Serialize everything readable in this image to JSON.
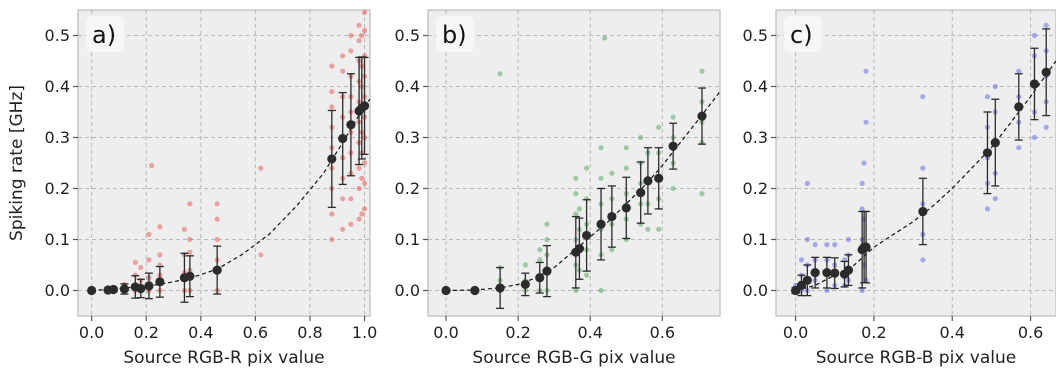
{
  "figure": {
    "ylabel": "Spiking rate [GHz]",
    "colors": {
      "background": "#ffffff",
      "plot_bg": "#eeeeee",
      "grid": "#b8b8b8",
      "spine": "#bbbbbb",
      "mean_marker": "#2b2b2b",
      "fit_line": "#111111",
      "letter_box": "#f7f7f7"
    }
  },
  "chart_data": [
    {
      "type": "scatter",
      "panel_label": "a)",
      "xlabel": "Source RGB-R pix value",
      "ylabel": "Spiking rate [GHz]",
      "xlim": [
        -0.05,
        1.02
      ],
      "ylim": [
        -0.05,
        0.55
      ],
      "xticks": [
        "0.0",
        "0.2",
        "0.4",
        "0.6",
        "0.8",
        "1.0"
      ],
      "xtick_values": [
        0.0,
        0.2,
        0.4,
        0.6,
        0.8,
        1.0
      ],
      "yticks": [
        "0.0",
        "0.1",
        "0.2",
        "0.3",
        "0.4",
        "0.5"
      ],
      "ytick_values": [
        0.0,
        0.1,
        0.2,
        0.3,
        0.4,
        0.5
      ],
      "grid": true,
      "scatter_color": "#e8413c",
      "fit_curve": {
        "x": [
          0.0,
          0.05,
          0.1,
          0.15,
          0.2,
          0.25,
          0.3,
          0.35,
          0.4,
          0.46,
          0.55,
          0.65,
          0.75,
          0.85,
          0.92,
          0.97,
          1.0,
          1.02
        ],
        "y": [
          0.0,
          0.002,
          0.004,
          0.006,
          0.009,
          0.012,
          0.017,
          0.023,
          0.031,
          0.042,
          0.07,
          0.11,
          0.165,
          0.23,
          0.29,
          0.335,
          0.362,
          0.375
        ]
      },
      "means": [
        {
          "x": 0.0,
          "y": 0.0,
          "sd": 0.0
        },
        {
          "x": 0.06,
          "y": 0.001,
          "sd": 0.003
        },
        {
          "x": 0.08,
          "y": 0.002,
          "sd": 0.004
        },
        {
          "x": 0.12,
          "y": 0.003,
          "sd": 0.01
        },
        {
          "x": 0.16,
          "y": 0.007,
          "sd": 0.022
        },
        {
          "x": 0.18,
          "y": 0.004,
          "sd": 0.018
        },
        {
          "x": 0.21,
          "y": 0.009,
          "sd": 0.025
        },
        {
          "x": 0.25,
          "y": 0.017,
          "sd": 0.03
        },
        {
          "x": 0.34,
          "y": 0.025,
          "sd": 0.048
        },
        {
          "x": 0.36,
          "y": 0.028,
          "sd": 0.04
        },
        {
          "x": 0.46,
          "y": 0.04,
          "sd": 0.047
        },
        {
          "x": 0.88,
          "y": 0.258,
          "sd": 0.095
        },
        {
          "x": 0.92,
          "y": 0.298,
          "sd": 0.09
        },
        {
          "x": 0.95,
          "y": 0.325,
          "sd": 0.1
        },
        {
          "x": 0.98,
          "y": 0.352,
          "sd": 0.105
        },
        {
          "x": 0.99,
          "y": 0.358,
          "sd": 0.1
        },
        {
          "x": 1.0,
          "y": 0.362,
          "sd": 0.095
        }
      ],
      "scatter_points": {
        "x": [
          0.0,
          0.0,
          0.06,
          0.06,
          0.08,
          0.08,
          0.12,
          0.12,
          0.12,
          0.16,
          0.16,
          0.16,
          0.16,
          0.18,
          0.18,
          0.18,
          0.21,
          0.21,
          0.21,
          0.21,
          0.22,
          0.25,
          0.25,
          0.25,
          0.25,
          0.25,
          0.34,
          0.34,
          0.34,
          0.34,
          0.36,
          0.36,
          0.36,
          0.36,
          0.36,
          0.46,
          0.46,
          0.46,
          0.46,
          0.46,
          0.62,
          0.62,
          0.88,
          0.88,
          0.88,
          0.88,
          0.88,
          0.88,
          0.88,
          0.88,
          0.88,
          0.92,
          0.92,
          0.92,
          0.92,
          0.92,
          0.92,
          0.92,
          0.92,
          0.92,
          0.95,
          0.95,
          0.95,
          0.95,
          0.95,
          0.95,
          0.95,
          0.95,
          0.95,
          0.95,
          0.98,
          0.98,
          0.98,
          0.98,
          0.98,
          0.98,
          0.98,
          0.98,
          0.98,
          0.98,
          0.99,
          0.99,
          0.99,
          0.99,
          0.99,
          0.99,
          0.99,
          0.99,
          1.0,
          1.0,
          1.0,
          1.0,
          1.0,
          1.0,
          1.0,
          1.0,
          1.0,
          1.0
        ],
        "y": [
          0.0,
          0.002,
          0.0,
          0.004,
          0.002,
          0.006,
          0.0,
          0.012,
          0.004,
          0.0,
          0.03,
          0.055,
          0.01,
          0.0,
          0.045,
          0.02,
          0.0,
          0.06,
          0.025,
          0.11,
          0.245,
          0.0,
          0.07,
          0.03,
          0.125,
          0.05,
          0.0,
          0.07,
          0.035,
          0.12,
          0.0,
          0.075,
          0.1,
          0.17,
          0.04,
          0.0,
          0.06,
          0.1,
          0.14,
          0.17,
          0.24,
          0.07,
          0.1,
          0.15,
          0.2,
          0.24,
          0.28,
          0.32,
          0.36,
          0.39,
          0.44,
          0.12,
          0.18,
          0.22,
          0.26,
          0.3,
          0.34,
          0.38,
          0.43,
          0.46,
          0.13,
          0.18,
          0.23,
          0.27,
          0.31,
          0.35,
          0.38,
          0.42,
          0.47,
          0.5,
          0.14,
          0.2,
          0.24,
          0.29,
          0.33,
          0.37,
          0.41,
          0.45,
          0.49,
          0.52,
          0.15,
          0.22,
          0.27,
          0.31,
          0.36,
          0.4,
          0.44,
          0.5,
          0.16,
          0.21,
          0.25,
          0.3,
          0.34,
          0.38,
          0.42,
          0.46,
          0.51,
          0.545
        ]
      }
    },
    {
      "type": "scatter",
      "panel_label": "b)",
      "xlabel": "Source RGB-G pix value",
      "ylabel": "",
      "xlim": [
        -0.05,
        0.76
      ],
      "ylim": [
        -0.05,
        0.55
      ],
      "xticks": [
        "0.0",
        "0.2",
        "0.4",
        "0.6"
      ],
      "xtick_values": [
        0.0,
        0.2,
        0.4,
        0.6
      ],
      "yticks": [
        "0.0",
        "0.1",
        "0.2",
        "0.3",
        "0.4",
        "0.5"
      ],
      "ytick_values": [
        0.0,
        0.1,
        0.2,
        0.3,
        0.4,
        0.5
      ],
      "grid": true,
      "scatter_color": "#3f9a44",
      "fit_curve": {
        "x": [
          0.0,
          0.08,
          0.15,
          0.2,
          0.25,
          0.3,
          0.35,
          0.4,
          0.45,
          0.5,
          0.55,
          0.6,
          0.65,
          0.7,
          0.76
        ],
        "y": [
          0.0,
          0.001,
          0.005,
          0.012,
          0.025,
          0.045,
          0.075,
          0.105,
          0.135,
          0.17,
          0.205,
          0.245,
          0.29,
          0.335,
          0.39
        ]
      },
      "means": [
        {
          "x": 0.0,
          "y": 0.0,
          "sd": 0.0
        },
        {
          "x": 0.08,
          "y": 0.0,
          "sd": 0.002
        },
        {
          "x": 0.15,
          "y": 0.005,
          "sd": 0.04
        },
        {
          "x": 0.22,
          "y": 0.012,
          "sd": 0.022
        },
        {
          "x": 0.26,
          "y": 0.025,
          "sd": 0.03
        },
        {
          "x": 0.28,
          "y": 0.038,
          "sd": 0.05
        },
        {
          "x": 0.36,
          "y": 0.075,
          "sd": 0.07
        },
        {
          "x": 0.37,
          "y": 0.082,
          "sd": 0.06
        },
        {
          "x": 0.39,
          "y": 0.108,
          "sd": 0.07
        },
        {
          "x": 0.43,
          "y": 0.13,
          "sd": 0.07
        },
        {
          "x": 0.46,
          "y": 0.145,
          "sd": 0.06
        },
        {
          "x": 0.5,
          "y": 0.162,
          "sd": 0.06
        },
        {
          "x": 0.54,
          "y": 0.192,
          "sd": 0.06
        },
        {
          "x": 0.56,
          "y": 0.215,
          "sd": 0.065
        },
        {
          "x": 0.59,
          "y": 0.22,
          "sd": 0.06
        },
        {
          "x": 0.63,
          "y": 0.283,
          "sd": 0.045
        },
        {
          "x": 0.71,
          "y": 0.342,
          "sd": 0.055
        }
      ],
      "scatter_points": {
        "x": [
          0.0,
          0.08,
          0.15,
          0.15,
          0.15,
          0.15,
          0.22,
          0.22,
          0.22,
          0.26,
          0.26,
          0.26,
          0.26,
          0.28,
          0.28,
          0.28,
          0.28,
          0.28,
          0.36,
          0.36,
          0.36,
          0.36,
          0.36,
          0.36,
          0.37,
          0.37,
          0.37,
          0.37,
          0.39,
          0.39,
          0.39,
          0.39,
          0.39,
          0.43,
          0.43,
          0.43,
          0.43,
          0.43,
          0.43,
          0.44,
          0.46,
          0.46,
          0.46,
          0.46,
          0.5,
          0.5,
          0.5,
          0.5,
          0.5,
          0.54,
          0.54,
          0.54,
          0.54,
          0.54,
          0.56,
          0.56,
          0.56,
          0.56,
          0.59,
          0.59,
          0.59,
          0.59,
          0.59,
          0.63,
          0.63,
          0.63,
          0.63,
          0.71,
          0.71,
          0.71,
          0.71,
          0.71
        ],
        "y": [
          0.0,
          0.0,
          0.0,
          0.02,
          0.045,
          0.425,
          0.0,
          0.02,
          0.05,
          0.0,
          0.03,
          0.06,
          0.08,
          0.0,
          0.04,
          0.07,
          0.1,
          0.13,
          0.0,
          0.05,
          0.1,
          0.15,
          0.19,
          0.22,
          0.04,
          0.08,
          0.12,
          0.16,
          0.03,
          0.08,
          0.13,
          0.18,
          0.24,
          0.0,
          0.07,
          0.12,
          0.17,
          0.22,
          0.28,
          0.495,
          0.08,
          0.13,
          0.18,
          0.23,
          0.1,
          0.14,
          0.19,
          0.24,
          0.28,
          0.13,
          0.17,
          0.21,
          0.25,
          0.3,
          0.12,
          0.17,
          0.22,
          0.27,
          0.12,
          0.18,
          0.22,
          0.27,
          0.32,
          0.2,
          0.25,
          0.3,
          0.34,
          0.19,
          0.29,
          0.33,
          0.37,
          0.43
        ]
      }
    },
    {
      "type": "scatter",
      "panel_label": "c)",
      "xlabel": "Source RGB-B pix value",
      "ylabel": "",
      "xlim": [
        -0.05,
        0.665
      ],
      "ylim": [
        -0.05,
        0.55
      ],
      "xticks": [
        "0.0",
        "0.2",
        "0.4",
        "0.6"
      ],
      "xtick_values": [
        0.0,
        0.2,
        0.4,
        0.6
      ],
      "yticks": [
        "0.0",
        "0.1",
        "0.2",
        "0.3",
        "0.4",
        "0.5"
      ],
      "ytick_values": [
        0.0,
        0.1,
        0.2,
        0.3,
        0.4,
        0.5
      ],
      "grid": true,
      "scatter_color": "#4a52e0",
      "fit_curve": {
        "x": [
          0.0,
          0.05,
          0.1,
          0.15,
          0.2,
          0.25,
          0.3,
          0.35,
          0.4,
          0.45,
          0.5,
          0.55,
          0.6,
          0.665
        ],
        "y": [
          0.0,
          0.01,
          0.03,
          0.05,
          0.085,
          0.11,
          0.135,
          0.165,
          0.2,
          0.24,
          0.28,
          0.33,
          0.38,
          0.45
        ]
      },
      "means": [
        {
          "x": 0.0,
          "y": 0.0,
          "sd": 0.006
        },
        {
          "x": 0.015,
          "y": 0.01,
          "sd": 0.02
        },
        {
          "x": 0.03,
          "y": 0.02,
          "sd": 0.03
        },
        {
          "x": 0.05,
          "y": 0.035,
          "sd": 0.03
        },
        {
          "x": 0.08,
          "y": 0.035,
          "sd": 0.03
        },
        {
          "x": 0.1,
          "y": 0.034,
          "sd": 0.03
        },
        {
          "x": 0.125,
          "y": 0.032,
          "sd": 0.025
        },
        {
          "x": 0.135,
          "y": 0.04,
          "sd": 0.03
        },
        {
          "x": 0.17,
          "y": 0.08,
          "sd": 0.075
        },
        {
          "x": 0.175,
          "y": 0.085,
          "sd": 0.07
        },
        {
          "x": 0.18,
          "y": 0.085,
          "sd": 0.07
        },
        {
          "x": 0.325,
          "y": 0.155,
          "sd": 0.065
        },
        {
          "x": 0.49,
          "y": 0.27,
          "sd": 0.08
        },
        {
          "x": 0.51,
          "y": 0.29,
          "sd": 0.085
        },
        {
          "x": 0.57,
          "y": 0.36,
          "sd": 0.065
        },
        {
          "x": 0.61,
          "y": 0.405,
          "sd": 0.07
        },
        {
          "x": 0.64,
          "y": 0.428,
          "sd": 0.085
        }
      ],
      "scatter_points": {
        "x": [
          0.0,
          0.0,
          0.015,
          0.015,
          0.015,
          0.03,
          0.03,
          0.03,
          0.03,
          0.05,
          0.05,
          0.05,
          0.08,
          0.08,
          0.08,
          0.1,
          0.1,
          0.1,
          0.125,
          0.125,
          0.135,
          0.135,
          0.135,
          0.17,
          0.17,
          0.17,
          0.17,
          0.175,
          0.175,
          0.175,
          0.18,
          0.18,
          0.18,
          0.18,
          0.325,
          0.325,
          0.325,
          0.325,
          0.325,
          0.49,
          0.49,
          0.49,
          0.49,
          0.49,
          0.51,
          0.51,
          0.51,
          0.51,
          0.51,
          0.57,
          0.57,
          0.57,
          0.57,
          0.61,
          0.61,
          0.61,
          0.61,
          0.61,
          0.64,
          0.64,
          0.64,
          0.64,
          0.64
        ],
        "y": [
          0.0,
          0.01,
          0.0,
          0.03,
          0.06,
          0.0,
          0.05,
          0.1,
          0.21,
          0.02,
          0.06,
          0.09,
          0.0,
          0.06,
          0.09,
          0.01,
          0.05,
          0.09,
          0.01,
          0.06,
          0.02,
          0.07,
          0.1,
          0.0,
          0.1,
          0.16,
          0.21,
          0.05,
          0.14,
          0.25,
          0.02,
          0.09,
          0.33,
          0.43,
          0.06,
          0.11,
          0.17,
          0.24,
          0.38,
          0.16,
          0.21,
          0.26,
          0.32,
          0.38,
          0.18,
          0.23,
          0.29,
          0.35,
          0.4,
          0.28,
          0.33,
          0.38,
          0.43,
          0.3,
          0.35,
          0.4,
          0.46,
          0.5,
          0.32,
          0.37,
          0.42,
          0.47,
          0.52
        ]
      }
    }
  ]
}
